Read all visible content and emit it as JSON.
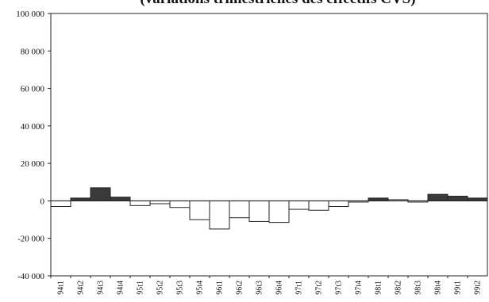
{
  "chart_data": {
    "type": "bar",
    "title": "(variations trimestrielles des effectifs CVS)",
    "xlabel": "",
    "ylabel": "",
    "ylim": [
      -40000,
      100000
    ],
    "yticks": [
      -40000,
      -20000,
      0,
      20000,
      40000,
      60000,
      80000,
      100000
    ],
    "ytick_labels": [
      "-40 000",
      "-20 000",
      "0",
      "20 000",
      "40 000",
      "60 000",
      "80 000",
      "100 000"
    ],
    "grid": false,
    "legend": "none",
    "categories": [
      "94t1",
      "94t2",
      "94t3",
      "94t4",
      "95t1",
      "95t2",
      "95t3",
      "95t4",
      "96t1",
      "96t2",
      "96t3",
      "96t4",
      "97t1",
      "97t2",
      "97t3",
      "97t4",
      "98t1",
      "98t2",
      "98t3",
      "98t4",
      "99t1",
      "99t2"
    ],
    "values": [
      -3000,
      1500,
      7000,
      2000,
      -2500,
      -1500,
      -3500,
      -10000,
      -15000,
      -9000,
      -11000,
      -11500,
      -4500,
      -5000,
      -3000,
      -500,
      1500,
      0,
      -500,
      3500,
      2500,
      1500
    ],
    "colors": {
      "positive": "#3a3a3a",
      "negative": "#ffffff",
      "stroke": "#222222",
      "axis": "#222222"
    }
  }
}
